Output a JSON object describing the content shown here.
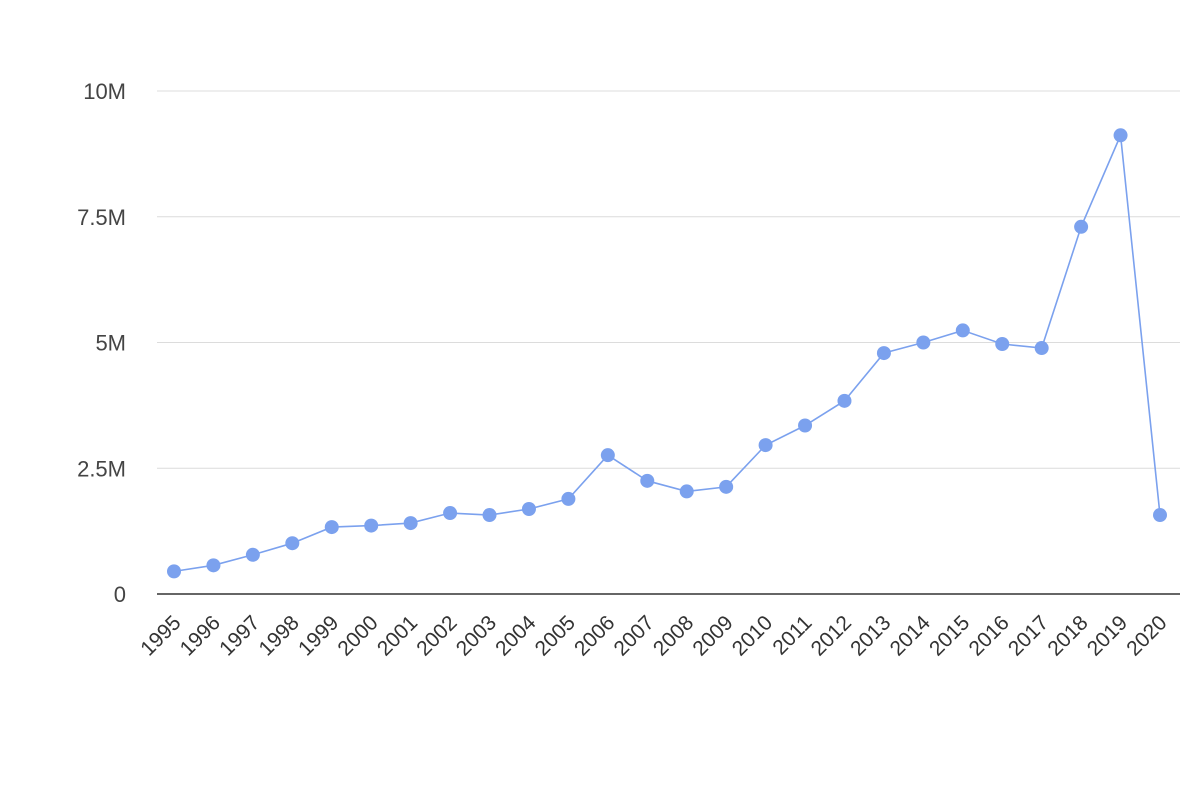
{
  "chart_data": {
    "type": "line",
    "title": "",
    "xlabel": "",
    "ylabel": "",
    "categories": [
      "1995",
      "1996",
      "1997",
      "1998",
      "1999",
      "2000",
      "2001",
      "2002",
      "2003",
      "2004",
      "2005",
      "2006",
      "2007",
      "2008",
      "2009",
      "2010",
      "2011",
      "2012",
      "2013",
      "2014",
      "2015",
      "2016",
      "2017",
      "2018",
      "2019",
      "2020"
    ],
    "series": [
      {
        "color": "#7ba1ee",
        "values": [
          450000,
          570000,
          780000,
          1010000,
          1330000,
          1360000,
          1410000,
          1610000,
          1570000,
          1690000,
          1890000,
          2760000,
          2250000,
          2040000,
          2130000,
          2960000,
          3350000,
          3840000,
          4790000,
          5000000,
          5240000,
          4970000,
          4890000,
          7300000,
          9120000,
          1570000
        ]
      }
    ],
    "ylim": [
      0,
      10000000
    ],
    "yticks": [
      0,
      2500000,
      5000000,
      7500000,
      10000000
    ],
    "ytick_labels": [
      "0",
      "2.5M",
      "5M",
      "7.5M",
      "10M"
    ],
    "grid": true,
    "legend": "none"
  }
}
